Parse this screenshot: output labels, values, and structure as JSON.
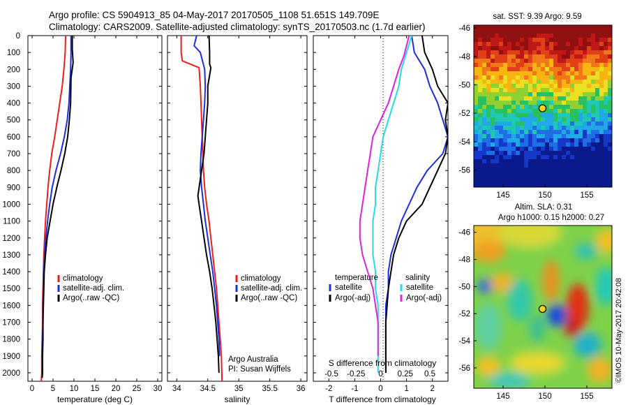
{
  "header": {
    "line1": "Argo profile: CS 5904913_85 04-May-2017 20170505_1108 51.651S 149.709E",
    "line2": "Climatology: CARS2009. Satellite-adjusted climatology: synTS_20170503.nc (1.7d earlier)"
  },
  "colors": {
    "climatology": "#ee1c1c",
    "satellite": "#1a2edc",
    "argo": "#000000",
    "satellite_salinity": "#22dde8",
    "argo_salinity_diff": "#e020e0"
  },
  "credits": {
    "org": "Argo Australia",
    "pi": "PI: Susan Wijffels",
    "imos": "©IMOS 10-May-2017 20:42:08"
  },
  "chart_data": [
    {
      "type": "line",
      "panel": "temperature",
      "xlabel": "temperature (deg C)",
      "ylabel": "",
      "xlim": [
        -1,
        31
      ],
      "ylim": [
        2050,
        0
      ],
      "xticks": [
        0,
        5,
        10,
        15,
        20,
        25,
        30
      ],
      "yticks": [
        0,
        100,
        200,
        300,
        400,
        500,
        600,
        700,
        800,
        900,
        1000,
        1100,
        1200,
        1300,
        1400,
        1500,
        1600,
        1700,
        1800,
        1900,
        2000
      ],
      "legend": [
        "climatology",
        "satellite-adj. clim.",
        "Argo(..raw -QC)"
      ],
      "series": [
        {
          "name": "climatology",
          "color": "#ee1c1c",
          "x": [
            8.0,
            7.9,
            7.6,
            7.2,
            6.6,
            6.0,
            5.4,
            4.7,
            4.2,
            3.8,
            3.5,
            3.2,
            3.0,
            2.8,
            2.7,
            2.6,
            2.5,
            2.5,
            2.4,
            2.3,
            2.3,
            2.2
          ],
          "y": [
            0,
            100,
            200,
            300,
            400,
            500,
            600,
            700,
            800,
            900,
            1000,
            1100,
            1200,
            1300,
            1400,
            1500,
            1600,
            1700,
            1800,
            1900,
            2000,
            2050
          ]
        },
        {
          "name": "satellite-adj. clim.",
          "color": "#1a2edc",
          "x": [
            9.3,
            9.3,
            9.2,
            9.0,
            8.8,
            8.4,
            7.7,
            6.8,
            5.7,
            4.8,
            4.2,
            3.7,
            3.3,
            3.0,
            2.8,
            2.7,
            2.6,
            2.6,
            2.5,
            2.4,
            2.4
          ],
          "y": [
            0,
            100,
            200,
            300,
            400,
            500,
            600,
            700,
            800,
            900,
            1000,
            1100,
            1200,
            1300,
            1400,
            1500,
            1600,
            1700,
            1800,
            1900,
            2000
          ]
        },
        {
          "name": "Argo(..raw -QC)",
          "color": "#000000",
          "x": [
            9.6,
            9.6,
            9.8,
            9.3,
            9.2,
            8.9,
            8.5,
            7.8,
            6.9,
            5.9,
            5.0,
            4.3,
            3.6,
            3.2,
            2.9,
            2.8,
            2.7,
            2.6,
            2.6,
            2.5,
            2.5,
            2.4
          ],
          "y": [
            0,
            80,
            160,
            250,
            400,
            500,
            600,
            700,
            800,
            900,
            1000,
            1100,
            1200,
            1300,
            1400,
            1500,
            1600,
            1700,
            1800,
            1900,
            2000,
            2030
          ]
        }
      ]
    },
    {
      "type": "line",
      "panel": "salinity",
      "xlabel": "salinity",
      "ylabel": "",
      "xlim": [
        33.85,
        36.1
      ],
      "ylim": [
        2050,
        0
      ],
      "xticks": [
        34,
        34.5,
        35,
        35.5,
        36
      ],
      "legend": [
        "climatology",
        "satellite-adj. clim.",
        "Argo(..raw -QC)"
      ],
      "series": [
        {
          "name": "climatology",
          "color": "#ee1c1c",
          "x": [
            34.07,
            34.07,
            34.09,
            34.36,
            34.38,
            34.39,
            34.4,
            34.41,
            34.42,
            34.43,
            34.45,
            34.48,
            34.52,
            34.55,
            34.58,
            34.61,
            34.64,
            34.66,
            34.68,
            34.7,
            34.72,
            34.73
          ],
          "y": [
            0,
            100,
            150,
            190,
            300,
            400,
            500,
            600,
            700,
            800,
            900,
            1000,
            1100,
            1200,
            1300,
            1400,
            1500,
            1600,
            1700,
            1800,
            1900,
            2050
          ]
        },
        {
          "name": "satellite-adj. clim.",
          "color": "#1a2edc",
          "x": [
            34.32,
            34.28,
            34.38,
            34.45,
            34.46,
            34.45,
            34.43,
            34.41,
            34.39,
            34.38,
            34.4,
            34.43,
            34.46,
            34.5,
            34.54,
            34.58,
            34.61,
            34.64,
            34.66,
            34.68,
            34.69
          ],
          "y": [
            0,
            60,
            100,
            200,
            300,
            400,
            500,
            600,
            700,
            800,
            900,
            1000,
            1100,
            1200,
            1300,
            1400,
            1500,
            1600,
            1700,
            1800,
            1900
          ]
        },
        {
          "name": "Argo(..raw -QC)",
          "color": "#000000",
          "x": [
            34.52,
            34.53,
            34.53,
            34.55,
            34.5,
            34.5,
            34.48,
            34.46,
            34.44,
            34.4,
            34.34,
            34.36,
            34.4,
            34.44,
            34.48,
            34.53,
            34.57,
            34.6,
            34.63,
            34.65,
            34.67,
            34.68
          ],
          "y": [
            0,
            100,
            170,
            190,
            300,
            400,
            500,
            600,
            700,
            800,
            950,
            1000,
            1100,
            1200,
            1300,
            1400,
            1500,
            1600,
            1700,
            1800,
            1900,
            2000
          ]
        }
      ]
    },
    {
      "type": "line",
      "panel": "differences",
      "xlabel": "T difference from climatology",
      "x2label": "S difference from climatology",
      "xlim": [
        -2.6,
        2.6
      ],
      "ylim": [
        2050,
        0
      ],
      "xticks": [
        -2,
        -1,
        0,
        1,
        2
      ],
      "x2tick_labels": [
        "-0.5",
        "-0.25",
        "0",
        "0.25",
        "0.5"
      ],
      "legend_titles": [
        "temperature",
        "salinity"
      ],
      "legend": [
        "satellite",
        "Argo(-adj)",
        "satellite",
        "Argo(-adj)"
      ],
      "series": [
        {
          "name": "satellite",
          "group": "temperature",
          "color": "#1a2edc",
          "x": [
            1.2,
            1.3,
            1.7,
            1.9,
            2.2,
            2.4,
            2.6,
            2.4,
            1.8,
            1.4,
            1.1,
            0.8,
            0.6,
            0.4,
            0.3,
            0.3,
            0.2,
            0.2,
            0.2,
            0.2,
            0.2
          ],
          "y": [
            0,
            100,
            200,
            300,
            400,
            500,
            600,
            700,
            800,
            900,
            1000,
            1100,
            1200,
            1300,
            1400,
            1500,
            1600,
            1700,
            1800,
            1900,
            2000
          ]
        },
        {
          "name": "Argo(-adj)",
          "group": "temperature",
          "color": "#000000",
          "x": [
            1.6,
            1.7,
            2.0,
            2.2,
            2.6,
            2.5,
            2.6,
            2.5,
            2.2,
            1.9,
            1.6,
            1.0,
            0.7,
            0.5,
            0.4,
            0.3,
            0.25,
            0.2,
            0.2,
            0.2,
            0.2
          ],
          "y": [
            0,
            100,
            200,
            300,
            400,
            500,
            600,
            700,
            800,
            900,
            1000,
            1100,
            1200,
            1300,
            1400,
            1500,
            1600,
            1700,
            1800,
            1900,
            2000
          ]
        },
        {
          "name": "satellite",
          "group": "salinity",
          "color": "#22dde8",
          "x": [
            1.2,
            1.0,
            0.8,
            0.7,
            0.5,
            0.3,
            0.1,
            0.0,
            -0.1,
            -0.2,
            -0.2,
            -0.3,
            -0.3,
            -0.3,
            -0.2,
            -0.2,
            -0.1,
            -0.1,
            -0.1,
            -0.1,
            -0.1
          ],
          "y": [
            0,
            100,
            200,
            300,
            400,
            500,
            600,
            700,
            800,
            900,
            1000,
            1100,
            1200,
            1300,
            1400,
            1500,
            1600,
            1700,
            1800,
            1900,
            2000
          ]
        },
        {
          "name": "Argo(-adj)",
          "group": "salinity",
          "color": "#e020e0",
          "x": [
            1.1,
            0.9,
            0.7,
            0.5,
            0.3,
            0.0,
            -0.3,
            -0.4,
            -0.5,
            -0.6,
            -0.7,
            -0.8,
            -0.8,
            -0.7,
            -0.5,
            -0.3,
            -0.2,
            -0.1,
            -0.1,
            -0.1
          ],
          "y": [
            0,
            120,
            200,
            300,
            400,
            500,
            600,
            700,
            800,
            900,
            1000,
            1100,
            1200,
            1300,
            1400,
            1500,
            1600,
            1700,
            1800,
            1900
          ]
        }
      ]
    },
    {
      "type": "heatmap",
      "panel": "sst-map",
      "title": "sat. SST: 9.39 Argo: 9.59",
      "xlim": [
        141.5,
        158
      ],
      "ylim": [
        -57.2,
        -45.8
      ],
      "xticks": [
        145,
        150,
        155
      ],
      "yticks": [
        -46,
        -48,
        -50,
        -52,
        -54,
        -56
      ],
      "marker": {
        "lon": 149.709,
        "lat": -51.651
      }
    },
    {
      "type": "heatmap",
      "panel": "sla-map",
      "title": "Altim. SLA: 0.31",
      "subtitle": "Argo h1000: 0.15 h2000: 0.27",
      "xlim": [
        141.5,
        158
      ],
      "ylim": [
        -57.5,
        -45.5
      ],
      "xticks": [
        145,
        150,
        155
      ],
      "yticks": [
        -46,
        -48,
        -50,
        -52,
        -54,
        -56
      ],
      "marker": {
        "lon": 149.709,
        "lat": -51.651
      }
    }
  ]
}
